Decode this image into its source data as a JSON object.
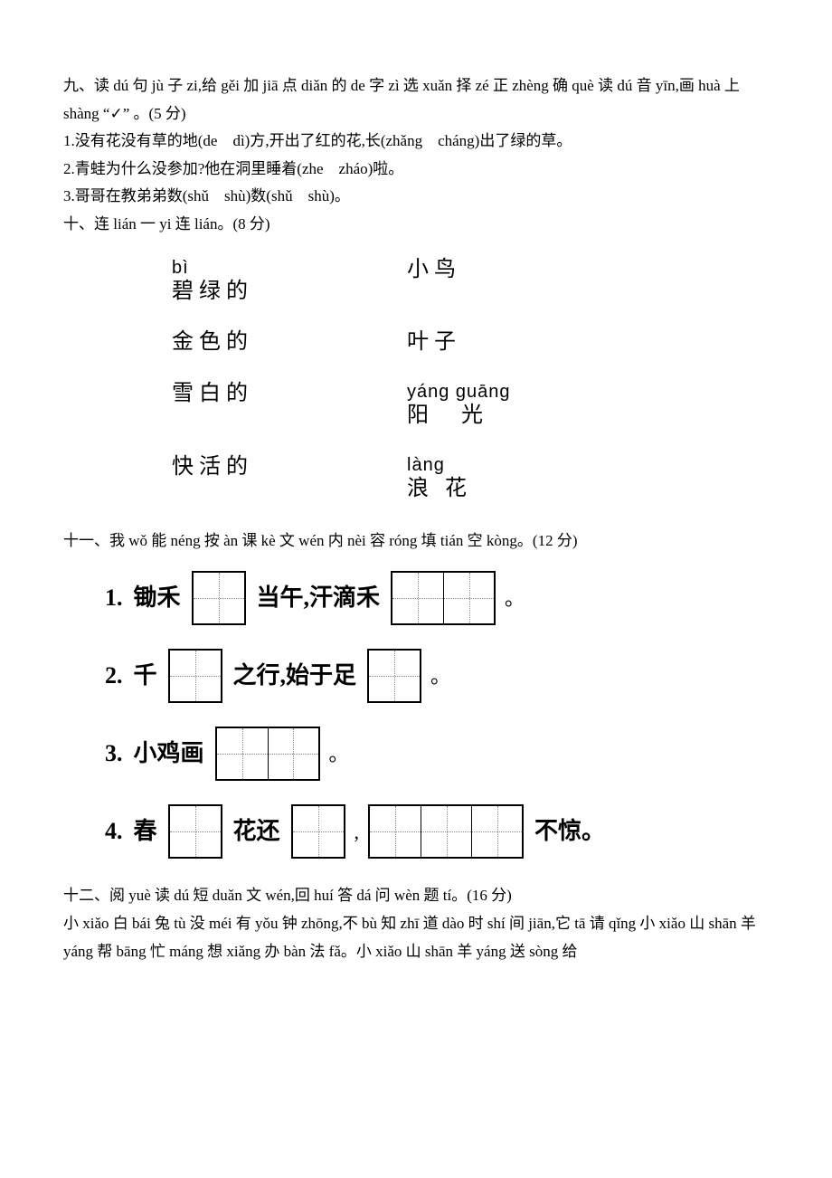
{
  "q9": {
    "title": "九、读 dú 句 jù 子 zi,给 gěi 加 jiā 点 diǎn 的 de 字 zì 选 xuǎn 择 zé 正 zhèng 确 què 读 dú 音 yīn,画 huà 上 shàng “✓” 。(5 分)",
    "items": [
      "1.没有花没有草的地(de　dì)方,开出了红的花,长(zhǎng　cháng)出了绿的草。",
      "2.青蛙为什么没参加?他在洞里睡着(zhe　zháo)啦。",
      "3.哥哥在教弟弟数(shǔ　shù)数(shǔ　shù)。"
    ]
  },
  "q10": {
    "title": "十、连 lián 一 yi 连 lián。(8 分)",
    "left": [
      {
        "pinyin": "bì",
        "hanzi": "碧绿的"
      },
      {
        "pinyin": "",
        "hanzi": "金色的"
      },
      {
        "pinyin": "",
        "hanzi": "雪白的"
      },
      {
        "pinyin": "",
        "hanzi": "快活的"
      }
    ],
    "right": [
      {
        "pinyin": "",
        "hanzi": "小鸟"
      },
      {
        "pinyin": "",
        "hanzi": "叶子"
      },
      {
        "pinyin": "yáng guāng",
        "hanzi": "阳　光"
      },
      {
        "pinyin": "làng",
        "hanzi": "浪 花"
      }
    ]
  },
  "q11": {
    "title": "十一、我 wǒ 能 néng 按 àn 课 kè 文 wén 内 nèi 容 róng 填 tián 空 kòng。(12 分)",
    "rows": [
      {
        "num": "1.",
        "parts": [
          {
            "t": "text",
            "v": "锄禾"
          },
          {
            "t": "box",
            "n": 1
          },
          {
            "t": "text",
            "v": "当午,汗滴禾"
          },
          {
            "t": "box",
            "n": 2
          },
          {
            "t": "punct",
            "v": "。"
          }
        ]
      },
      {
        "num": "2.",
        "parts": [
          {
            "t": "text",
            "v": "千"
          },
          {
            "t": "box",
            "n": 1
          },
          {
            "t": "text",
            "v": "之行,始于足"
          },
          {
            "t": "box",
            "n": 1
          },
          {
            "t": "punct",
            "v": "。"
          }
        ]
      },
      {
        "num": "3.",
        "parts": [
          {
            "t": "text",
            "v": "小鸡画"
          },
          {
            "t": "box",
            "n": 2
          },
          {
            "t": "punct",
            "v": "。"
          }
        ]
      },
      {
        "num": "4.",
        "parts": [
          {
            "t": "text",
            "v": "春"
          },
          {
            "t": "box",
            "n": 1
          },
          {
            "t": "text",
            "v": "花还"
          },
          {
            "t": "box",
            "n": 1
          },
          {
            "t": "punct",
            "v": ","
          },
          {
            "t": "box",
            "n": 3
          },
          {
            "t": "text",
            "v": "不惊。"
          }
        ]
      }
    ]
  },
  "q12": {
    "title": "十二、阅 yuè 读 dú 短 duǎn 文 wén,回 huí 答 dá 问 wèn 题 tí。(16 分)",
    "body": "小 xiǎo 白 bái 兔 tù 没 méi 有 yǒu 钟 zhōng,不 bù 知 zhī 道 dào 时 shí 间 jiān,它 tā 请 qǐng 小 xiǎo 山 shān 羊 yáng 帮 bāng 忙 máng 想 xiǎng 办 bàn 法 fǎ。小 xiǎo 山 shān 羊 yáng 送 sòng 给"
  }
}
